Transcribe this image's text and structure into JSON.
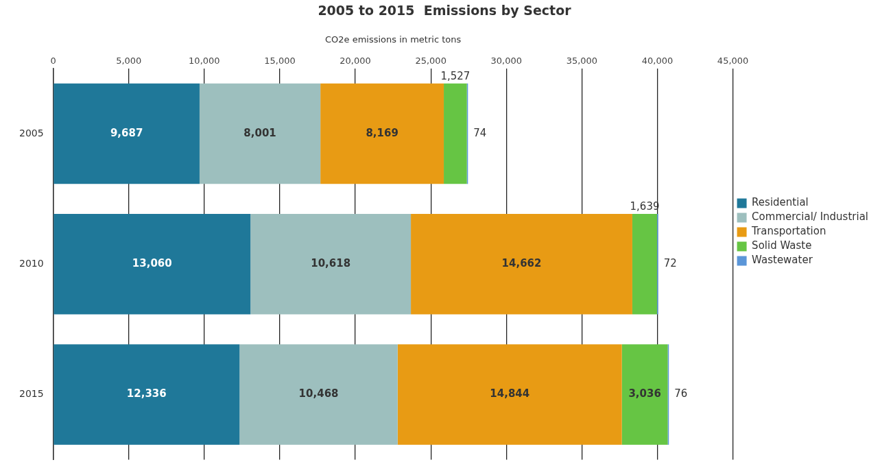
{
  "chart_data": {
    "type": "bar",
    "orientation": "horizontal",
    "stacked": true,
    "title": "2005 to 2015  Emissions by Sector",
    "xlabel": "CO2e emissions in metric tons",
    "categories": [
      "2005",
      "2010",
      "2015"
    ],
    "series": [
      {
        "name": "Residential",
        "color": "#1f7899",
        "values": [
          9687,
          13060,
          12336
        ],
        "value_labels": [
          "9,687",
          "13,060",
          "12,336"
        ]
      },
      {
        "name": "Commercial/ Industrial",
        "color": "#9dbfbe",
        "values": [
          8001,
          10618,
          10468
        ],
        "value_labels": [
          "8,001",
          "10,618",
          "10,468"
        ]
      },
      {
        "name": "Transportation",
        "color": "#e89b14",
        "values": [
          8169,
          14662,
          14844
        ],
        "value_labels": [
          "8,169",
          "14,662",
          "14,844"
        ]
      },
      {
        "name": "Solid Waste",
        "color": "#66c544",
        "values": [
          1527,
          1639,
          3036
        ],
        "value_labels": [
          "1,527",
          "1,639",
          "3,036"
        ]
      },
      {
        "name": "Wastewater",
        "color": "#5b96d8",
        "values": [
          74,
          72,
          76
        ],
        "value_labels": [
          "74",
          "72",
          "76"
        ]
      }
    ],
    "xlim": [
      0,
      45000
    ],
    "xticks": [
      {
        "value": 0,
        "label": "0"
      },
      {
        "value": 5000,
        "label": "5,000"
      },
      {
        "value": 10000,
        "label": "10,000"
      },
      {
        "value": 15000,
        "label": "15,000"
      },
      {
        "value": 20000,
        "label": "20,000"
      },
      {
        "value": 25000,
        "label": "25,000"
      },
      {
        "value": 30000,
        "label": "30,000"
      },
      {
        "value": 35000,
        "label": "35,000"
      },
      {
        "value": 40000,
        "label": "40,000"
      },
      {
        "value": 45000,
        "label": "45,000"
      }
    ],
    "grid": "x",
    "legend": "right"
  }
}
